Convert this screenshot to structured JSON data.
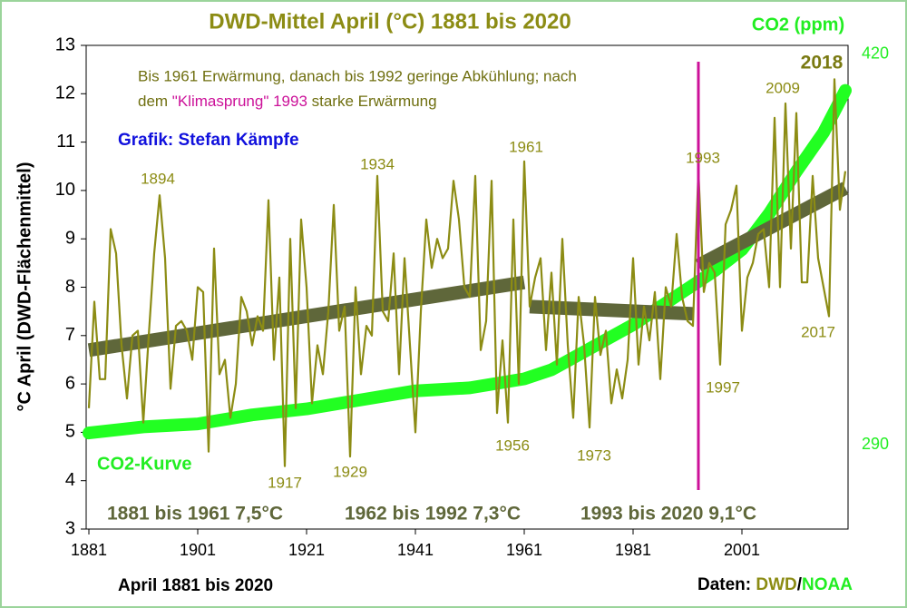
{
  "chart_data": {
    "type": "line",
    "title": "DWD-Mittel April (°C) 1881 bis 2020",
    "y2_title": "CO2 (ppm)",
    "y_label": "°C April (DWD-Flächenmittel)",
    "x_label": "April 1881 bis 2020",
    "credit": "Grafik: Stefan Kämpfe",
    "note": {
      "line1": "Bis 1961 Erwärmung, danach bis 1992 geringe Abkühlung; nach",
      "line2_start": "dem ",
      "line2_highlight": "\"Klimasprung\" 1993",
      "line2_end": " starke Erwärmung"
    },
    "sources": {
      "prefix": "Daten: ",
      "first": "DWD",
      "sep": "/",
      "second": "NOAA"
    },
    "co2_label": "CO2-Kurve",
    "periods": [
      "1881 bis 1961 7,5°C",
      "1962 bis 1992 7,3°C",
      "1993 bis 2020 9,1°C"
    ],
    "year_labels": [
      "1894",
      "1934",
      "1961",
      "1993",
      "2009",
      "2018",
      "2017",
      "1997",
      "1973",
      "1956",
      "1929",
      "1917"
    ],
    "xlim": [
      1880.5,
      2020.5
    ],
    "xticks": [
      1881,
      1901,
      1921,
      1941,
      1961,
      1981,
      2001
    ],
    "ylim": [
      3,
      13
    ],
    "yticks": [
      3,
      4,
      5,
      6,
      7,
      8,
      9,
      10,
      11,
      12,
      13
    ],
    "y2lim": [
      262,
      423
    ],
    "y2ticks": [
      290,
      420
    ],
    "x": [
      1881,
      1882,
      1883,
      1884,
      1885,
      1886,
      1887,
      1888,
      1889,
      1890,
      1891,
      1892,
      1893,
      1894,
      1895,
      1896,
      1897,
      1898,
      1899,
      1900,
      1901,
      1902,
      1903,
      1904,
      1905,
      1906,
      1907,
      1908,
      1909,
      1910,
      1911,
      1912,
      1913,
      1914,
      1915,
      1916,
      1917,
      1918,
      1919,
      1920,
      1921,
      1922,
      1923,
      1924,
      1925,
      1926,
      1927,
      1928,
      1929,
      1930,
      1931,
      1932,
      1933,
      1934,
      1935,
      1936,
      1937,
      1938,
      1939,
      1940,
      1941,
      1942,
      1943,
      1944,
      1945,
      1946,
      1947,
      1948,
      1949,
      1950,
      1951,
      1952,
      1953,
      1954,
      1955,
      1956,
      1957,
      1958,
      1959,
      1960,
      1961,
      1962,
      1963,
      1964,
      1965,
      1966,
      1967,
      1968,
      1969,
      1970,
      1971,
      1972,
      1973,
      1974,
      1975,
      1976,
      1977,
      1978,
      1979,
      1980,
      1981,
      1982,
      1983,
      1984,
      1985,
      1986,
      1987,
      1988,
      1989,
      1990,
      1991,
      1992,
      1993,
      1994,
      1995,
      1996,
      1997,
      1998,
      1999,
      2000,
      2001,
      2002,
      2003,
      2004,
      2005,
      2006,
      2007,
      2008,
      2009,
      2010,
      2011,
      2012,
      2013,
      2014,
      2015,
      2016,
      2017,
      2018,
      2019,
      2020
    ],
    "series": [
      {
        "color": "#8c8c14",
        "values": [
          5.5,
          7.7,
          6.1,
          6.1,
          9.2,
          8.7,
          6.8,
          5.7,
          7.0,
          7.1,
          5.2,
          7.0,
          8.7,
          9.9,
          8.6,
          5.9,
          7.2,
          7.3,
          7.1,
          6.5,
          8.0,
          7.9,
          4.6,
          8.8,
          6.2,
          6.5,
          5.3,
          6.0,
          7.8,
          7.5,
          6.8,
          7.4,
          7.1,
          9.8,
          6.5,
          8.2,
          4.3,
          9.0,
          5.5,
          9.4,
          8.0,
          5.6,
          6.8,
          6.2,
          7.5,
          9.7,
          7.1,
          7.6,
          4.5,
          8.0,
          6.2,
          7.2,
          7.0,
          10.3,
          7.5,
          7.3,
          8.7,
          6.2,
          8.6,
          6.8,
          5.0,
          7.5,
          9.4,
          8.4,
          9.0,
          8.6,
          8.8,
          10.2,
          9.4,
          8.0,
          7.8,
          10.3,
          6.7,
          7.3,
          10.2,
          5.4,
          6.9,
          5.2,
          9.4,
          6.0,
          10.6,
          7.6,
          8.2,
          8.6,
          6.7,
          8.3,
          6.4,
          9.0,
          6.8,
          5.3,
          7.8,
          6.8,
          5.1,
          7.8,
          6.6,
          7.1,
          5.6,
          6.3,
          5.7,
          6.5,
          8.6,
          6.4,
          7.6,
          6.9,
          7.9,
          6.1,
          8.0,
          7.6,
          9.1,
          7.8,
          7.3,
          7.2,
          10.4,
          7.9,
          8.5,
          8.3,
          6.4,
          9.3,
          9.6,
          10.1,
          7.1,
          8.2,
          8.5,
          9.1,
          9.2,
          8.0,
          11.5,
          8.0,
          11.8,
          8.8,
          11.6,
          8.1,
          8.1,
          10.3,
          8.6,
          8.0,
          7.4,
          12.3,
          9.6,
          10.4
        ]
      },
      {
        "axis": "y2",
        "color": "#22ff22",
        "x": [
          1881,
          1891,
          1901,
          1911,
          1921,
          1931,
          1941,
          1951,
          1961,
          1966,
          1971,
          1976,
          1981,
          1986,
          1991,
          1996,
          2001,
          2006,
          2011,
          2016,
          2020
        ],
        "values": [
          294,
          296,
          297,
          300,
          302,
          305,
          308,
          309,
          312,
          315,
          320,
          325,
          330,
          336,
          342,
          348,
          355,
          367,
          381,
          394,
          408
        ]
      }
    ],
    "trends": [
      {
        "x": [
          1881,
          1961
        ],
        "values": [
          6.7,
          8.1
        ]
      },
      {
        "x": [
          1962,
          1992
        ],
        "values": [
          7.6,
          7.45
        ]
      },
      {
        "x": [
          1993,
          2020
        ],
        "values": [
          8.45,
          10.05
        ]
      }
    ],
    "trend_color": "#5f673a",
    "vline": {
      "x": 1993,
      "color": "#cc1199"
    }
  }
}
